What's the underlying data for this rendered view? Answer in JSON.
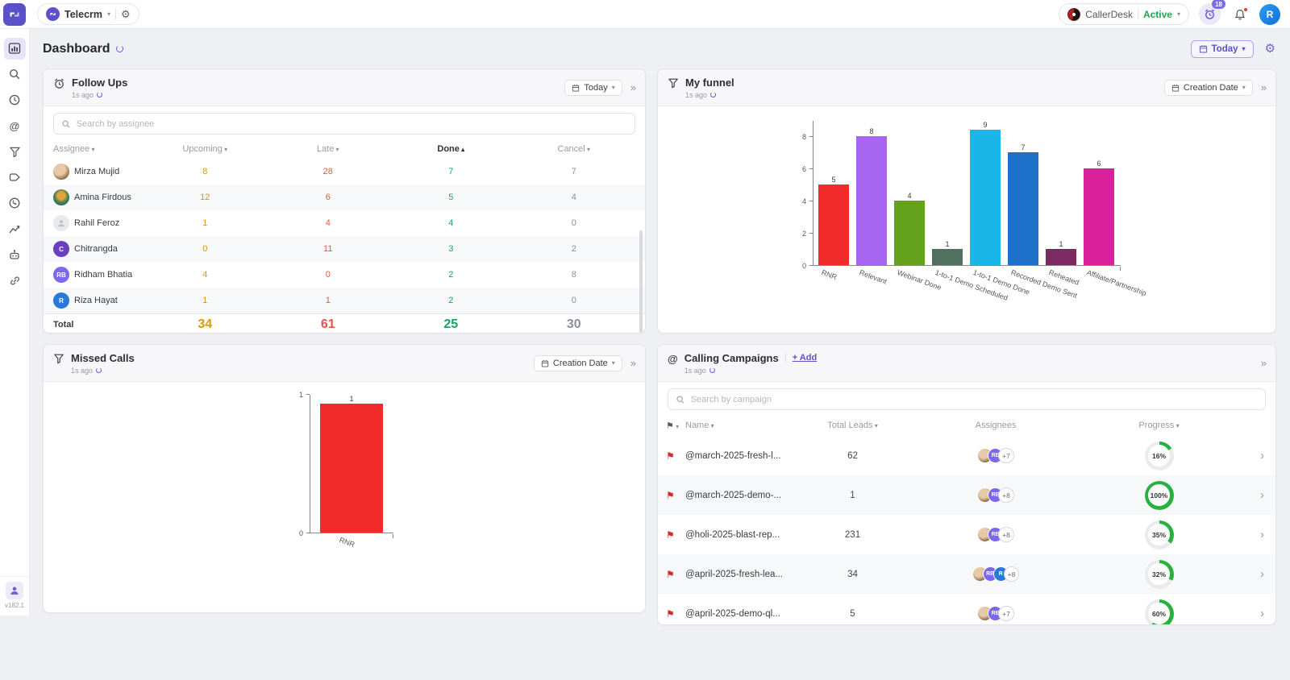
{
  "topbar": {
    "workspace": "Telecrm",
    "callerdesk": {
      "name": "CallerDesk",
      "status": "Active"
    },
    "reminders_badge": "18",
    "avatar_initial": "R"
  },
  "sidebar": {
    "version": "v182.1"
  },
  "page": {
    "title": "Dashboard",
    "range_label": "Today"
  },
  "colors": {
    "accent": "#5b51c8",
    "upcoming": "#d79b00",
    "late": "#e2574c",
    "done": "#1f9e63",
    "cancel": "#8a919a",
    "active_status": "#21a453",
    "progress_ring": "#27b240"
  },
  "follow_ups": {
    "title": "Follow Ups",
    "updated": "1s ago",
    "range_label": "Today",
    "search_placeholder": "Search by assignee",
    "columns": [
      "Assignee",
      "Upcoming",
      "Late",
      "Done",
      "Cancel"
    ],
    "sort_column": "Done",
    "rows": [
      {
        "name": "Mirza Mujid",
        "avatar": {
          "type": "photo1"
        },
        "upcoming": 8,
        "late": 28,
        "done": 7,
        "cancel": 7
      },
      {
        "name": "Amina Firdous",
        "avatar": {
          "type": "photo2"
        },
        "upcoming": 12,
        "late": 6,
        "done": 5,
        "cancel": 4
      },
      {
        "name": "Rahil Feroz",
        "avatar": {
          "type": "placeholder"
        },
        "upcoming": 1,
        "late": 4,
        "done": 4,
        "cancel": 0
      },
      {
        "name": "Chitrangda",
        "avatar": {
          "type": "initials",
          "text": "C",
          "bg": "#6a3fc0"
        },
        "upcoming": 0,
        "late": 11,
        "done": 3,
        "cancel": 2
      },
      {
        "name": "Ridham Bhatia",
        "avatar": {
          "type": "initials",
          "text": "RB",
          "bg": "#7b68ee"
        },
        "upcoming": 4,
        "late": 0,
        "done": 2,
        "cancel": 8
      },
      {
        "name": "Riza Hayat",
        "avatar": {
          "type": "initials",
          "text": "R",
          "bg": "#2979d9"
        },
        "upcoming": 1,
        "late": 1,
        "done": 2,
        "cancel": 0
      }
    ],
    "total": {
      "label": "Total",
      "upcoming": 34,
      "late": 61,
      "done": 25,
      "cancel": 30
    }
  },
  "my_funnel": {
    "title": "My funnel",
    "updated": "1s ago",
    "sort_label": "Creation Date",
    "chart_data": {
      "type": "bar",
      "categories": [
        "RNR",
        "Relevant",
        "Webinar Done",
        "1-to-1 Demo Scheduled",
        "1-to-1 Demo Done",
        "Recorded Demo Sent",
        "Reheated",
        "Affiliate/Partnership"
      ],
      "values": [
        5,
        8,
        4,
        1,
        9,
        7,
        1,
        6
      ],
      "colors": [
        "#f12b2b",
        "#a666f1",
        "#64a21c",
        "#51705f",
        "#1ab6e8",
        "#1e70c8",
        "#7c2a62",
        "#d9219c"
      ],
      "ylim": [
        0,
        9
      ],
      "yticks": [
        0,
        2,
        4,
        6,
        8
      ]
    }
  },
  "missed_calls": {
    "title": "Missed Calls",
    "updated": "1s ago",
    "sort_label": "Creation Date",
    "chart_data": {
      "type": "bar",
      "categories": [
        "RNR"
      ],
      "values": [
        1
      ],
      "colors": [
        "#f12b2b"
      ],
      "ylim": [
        0,
        1
      ],
      "yticks": [
        0,
        1
      ]
    }
  },
  "calling_campaigns": {
    "title": "Calling Campaigns",
    "add_label": "+ Add",
    "updated": "1s ago",
    "search_placeholder": "Search by campaign",
    "columns": {
      "name": "Name",
      "total_leads": "Total Leads",
      "assignees": "Assignees",
      "progress": "Progress"
    },
    "rows": [
      {
        "name": "@march-2025-fresh-l...",
        "total_leads": 62,
        "avatars": [
          "photo",
          "RB"
        ],
        "extra_assignees": "+7",
        "progress": 16
      },
      {
        "name": "@march-2025-demo-...",
        "total_leads": 1,
        "avatars": [
          "photo",
          "RB"
        ],
        "extra_assignees": "+8",
        "progress": 100
      },
      {
        "name": "@holi-2025-blast-rep...",
        "total_leads": 231,
        "avatars": [
          "photo",
          "RB"
        ],
        "extra_assignees": "+8",
        "progress": 35
      },
      {
        "name": "@april-2025-fresh-lea...",
        "total_leads": 34,
        "avatars": [
          "photo",
          "RB",
          "R"
        ],
        "extra_assignees": "+8",
        "progress": 32
      },
      {
        "name": "@april-2025-demo-ql...",
        "total_leads": 5,
        "avatars": [
          "photo",
          "RB"
        ],
        "extra_assignees": "+7",
        "progress": 60
      }
    ]
  }
}
